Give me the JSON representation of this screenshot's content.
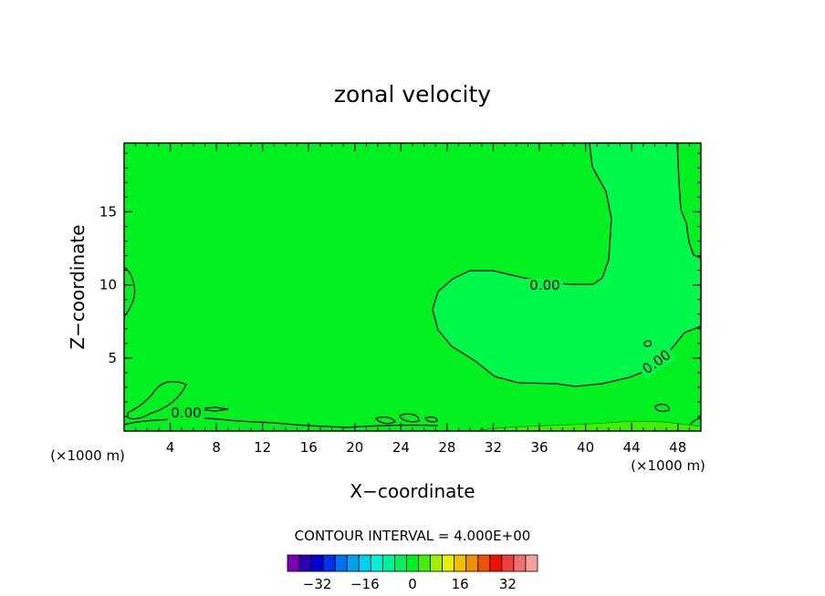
{
  "chart_data": {
    "type": "contour",
    "title": "zonal velocity",
    "xlabel": "X−coordinate",
    "ylabel": "Z−coordinate",
    "x_unit_left": "(×1000 m)",
    "x_unit_right": "(×1000 m)",
    "xlim": [
      0,
      50
    ],
    "ylim": [
      0,
      19.7
    ],
    "x_ticks": [
      4,
      8,
      12,
      16,
      20,
      24,
      28,
      32,
      36,
      40,
      44,
      48
    ],
    "y_ticks": [
      5,
      10,
      15
    ],
    "contour_interval_text": "CONTOUR INTERVAL = 4.000E+00",
    "contour_labels": [
      "0.00",
      "0.00",
      "0.00"
    ],
    "colorbar": {
      "colors": [
        "#7e00b4",
        "#2c00b4",
        "#0000d4",
        "#0030f0",
        "#0070f4",
        "#00a0f4",
        "#00d0f0",
        "#00f0d8",
        "#00f0a0",
        "#00f060",
        "#00f020",
        "#40f000",
        "#a0f000",
        "#e8f000",
        "#f0c000",
        "#f09000",
        "#f05000",
        "#f01000",
        "#f04040",
        "#f07070",
        "#f8a0a0"
      ],
      "tick_values": [
        -32,
        -16,
        0,
        16,
        32
      ],
      "tick_labels": [
        "−32",
        "−16",
        "0",
        "16",
        "32"
      ]
    },
    "fill_colors": {
      "background": "#00f020",
      "zero_region": "#00f84a",
      "bottom_band": "#40f000"
    }
  }
}
